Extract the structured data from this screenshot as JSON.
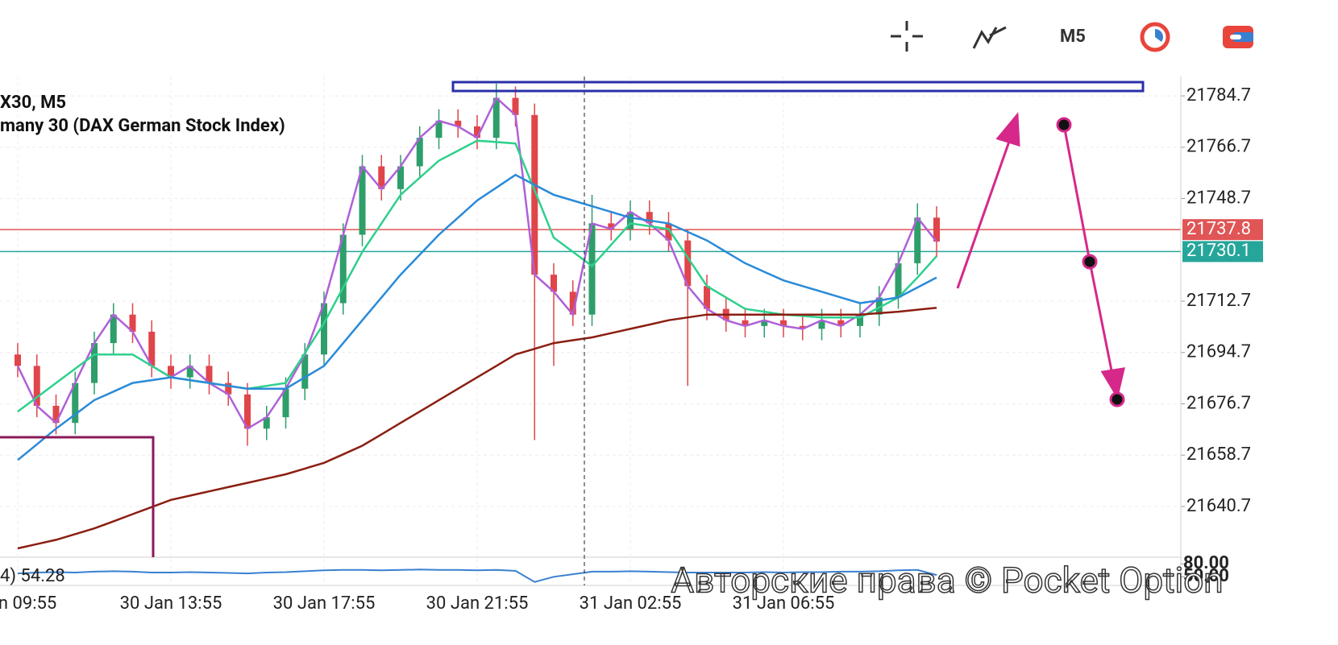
{
  "toolbar": {
    "timeframe": "M5"
  },
  "watermark": "Авторские права © Pocket Option",
  "chart_data": {
    "type": "candlestick",
    "title": "X30, M5",
    "subtitle": "many 30 (DAX German Stock Index)",
    "categories": [
      "Jan 09:55",
      null,
      null,
      null,
      null,
      null,
      null,
      null,
      "30 Jan 13:55",
      null,
      null,
      null,
      null,
      null,
      null,
      null,
      "30 Jan 17:55",
      null,
      null,
      null,
      null,
      null,
      null,
      null,
      "30 Jan 21:55",
      null,
      null,
      null,
      null,
      null,
      null,
      null,
      "31 Jan 02:55",
      null,
      null,
      null,
      null,
      null,
      null,
      null,
      "31 Jan 06:55",
      null,
      null,
      null,
      null,
      null,
      null,
      null,
      null
    ],
    "open": [
      21694,
      21690,
      21676,
      21670,
      21684,
      21698,
      21708,
      21702,
      21690,
      21686,
      21690,
      21684,
      21680,
      21668,
      21672,
      21682,
      21694,
      21712,
      21736,
      21760,
      21752,
      21760,
      21770,
      21776,
      21774,
      21770,
      21784,
      21778,
      21722,
      21716,
      21708,
      21740,
      21738,
      21744,
      21740,
      21734,
      21718,
      21710,
      21706,
      21704,
      21706,
      21704,
      21703,
      21706,
      21704,
      21708,
      21714,
      21726,
      21742
    ],
    "high": [
      21698,
      21694,
      21680,
      21688,
      21702,
      21712,
      21712,
      21706,
      21694,
      21694,
      21694,
      21688,
      21684,
      21676,
      21686,
      21698,
      21716,
      21740,
      21764,
      21764,
      21764,
      21774,
      21780,
      21780,
      21778,
      21789,
      21788,
      21782,
      21726,
      21720,
      21750,
      21744,
      21748,
      21748,
      21744,
      21738,
      21722,
      21714,
      21710,
      21710,
      21710,
      21708,
      21710,
      21710,
      21712,
      21718,
      21730,
      21747,
      21746
    ],
    "low": [
      21686,
      21672,
      21666,
      21666,
      21680,
      21694,
      21698,
      21686,
      21682,
      21682,
      21680,
      21676,
      21662,
      21664,
      21668,
      21678,
      21690,
      21708,
      21732,
      21748,
      21748,
      21756,
      21766,
      21770,
      21766,
      21766,
      21774,
      21664,
      21690,
      21704,
      21704,
      21734,
      21734,
      21736,
      21730,
      21683,
      21706,
      21702,
      21700,
      21700,
      21700,
      21699,
      21699,
      21700,
      21700,
      21704,
      21710,
      21722,
      21728
    ],
    "close": [
      21690,
      21676,
      21670,
      21684,
      21698,
      21708,
      21702,
      21690,
      21686,
      21690,
      21684,
      21680,
      21668,
      21672,
      21682,
      21694,
      21712,
      21736,
      21760,
      21752,
      21760,
      21770,
      21776,
      21774,
      21770,
      21784,
      21778,
      21722,
      21716,
      21708,
      21740,
      21738,
      21744,
      21740,
      21734,
      21718,
      21710,
      21706,
      21704,
      21706,
      21704,
      21703,
      21706,
      21704,
      21708,
      21714,
      21726,
      21742,
      21733.6
    ],
    "up_color": "#2e9e6a",
    "down_color": "#e0454a",
    "series": [
      {
        "color": "#b060d8",
        "values": [
          21690,
          21676,
          21670,
          21684,
          21698,
          21708,
          21702,
          21690,
          21686,
          21690,
          21684,
          21680,
          21668,
          21672,
          21682,
          21694,
          21712,
          21736,
          21760,
          21752,
          21760,
          21770,
          21776,
          21774,
          21770,
          21784,
          21778,
          21722,
          21716,
          21708,
          21740,
          21738,
          21744,
          21740,
          21734,
          21718,
          21710,
          21706,
          21704,
          21706,
          21704,
          21703,
          21706,
          21704,
          21708,
          21714,
          21726,
          21742,
          21733.6
        ]
      },
      {
        "color": "#2ed08c",
        "values": [
          21674,
          21679,
          21684,
          21689,
          21694,
          21694,
          21694,
          21690,
          21686,
          21685,
          21684,
          21683,
          21682,
          21683,
          21684,
          21694.5,
          21705,
          21717.5,
          21730,
          21740,
          21750,
          21756,
          21762,
          21765.5,
          21769,
          21768.5,
          21768,
          21751.5,
          21735,
          21730,
          21725,
          21732.5,
          21740,
          21739,
          21738,
          21728,
          21718,
          21714,
          21710,
          21709,
          21708,
          21707.5,
          21707,
          21707,
          21707,
          21710.5,
          21714,
          21721,
          21728.5
        ]
      },
      {
        "color": "#2a8ad8",
        "values": [
          21657,
          21662.5,
          21668,
          21673,
          21678,
          21681,
          21684,
          21685,
          21686,
          21685,
          21684,
          21683,
          21682,
          21682,
          21682,
          21686,
          21690,
          21698,
          21706,
          21714,
          21722,
          21729,
          21736,
          21742,
          21748,
          21752.5,
          21757,
          21753.5,
          21750,
          21748,
          21746,
          21744,
          21742,
          21741,
          21740,
          21737,
          21734,
          21730,
          21726,
          21723,
          21720,
          21718,
          21716,
          21714,
          21712,
          21713,
          21714,
          21717.5,
          21721
        ]
      },
      {
        "color": "#8b1e12",
        "values": [
          21626,
          21627.5,
          21629,
          21631,
          21633,
          21635.5,
          21638,
          21640.5,
          21643,
          21644.5,
          21646,
          21647.5,
          21649,
          21650.5,
          21652,
          21654,
          21656,
          21659,
          21662,
          21666,
          21670,
          21674,
          21678,
          21682,
          21686,
          21690,
          21694,
          21696,
          21698,
          21699,
          21700,
          21701.5,
          21703,
          21704.5,
          21706,
          21707,
          21708,
          21708,
          21708,
          21708,
          21708,
          21708,
          21708,
          21708,
          21708,
          21708.5,
          21709,
          21709.7,
          21710.4
        ]
      }
    ],
    "price_lines": [
      {
        "value": 21737.8,
        "color": "#e05555"
      },
      {
        "value": 21730.1,
        "color": "#26a69a"
      }
    ],
    "ylim": [
      21622.9,
      21791.5
    ],
    "yticks": [
      21784.7,
      21766.7,
      21748.7,
      21712.7,
      21694.7,
      21676.7,
      21658.7,
      21640.7
    ],
    "grid": true,
    "oscillator": {
      "label": "4) 54.28",
      "color": "#3a80d0",
      "ylim": [
        30,
        90
      ],
      "yticks": [
        {
          "value": 80,
          "label": "80.00"
        },
        {
          "value": 50,
          "label": "50.00"
        }
      ],
      "values": [
        58,
        60,
        61,
        60,
        62,
        63,
        62,
        60,
        60,
        61,
        60,
        59,
        58,
        60,
        61,
        63,
        65,
        66,
        66,
        65,
        66,
        67,
        66,
        66,
        65,
        66,
        64,
        38,
        50,
        56,
        62,
        62,
        63,
        62,
        61,
        60,
        60,
        60,
        60,
        61,
        60,
        61,
        61,
        62,
        62,
        63,
        65,
        66,
        54.28
      ]
    }
  }
}
